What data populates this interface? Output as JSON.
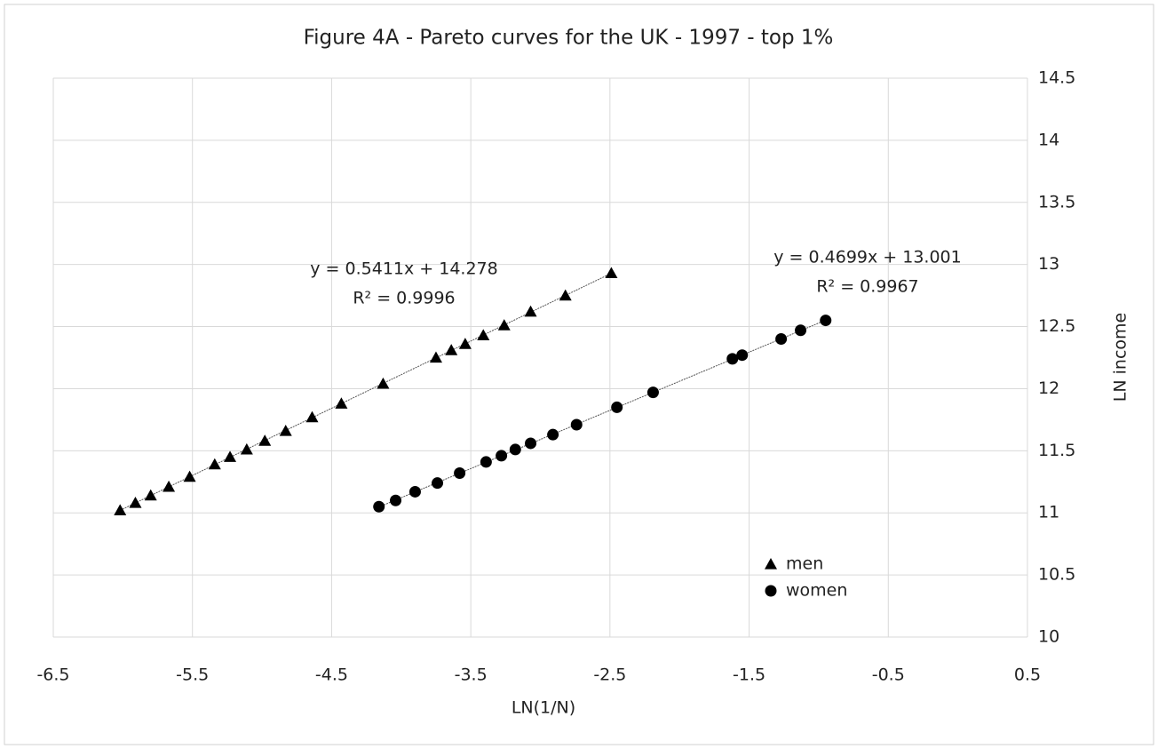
{
  "chart_data": {
    "type": "scatter",
    "title": "Figure 4A - Pareto curves for the UK - 1997 - top 1%",
    "x_label": "LN(1/N)",
    "y_label": "LN income",
    "xlim": [
      -6.5,
      0.5
    ],
    "xticks": [
      -6.5,
      -5.5,
      -4.5,
      -3.5,
      -2.5,
      -1.5,
      -0.5,
      0.5
    ],
    "ylim": [
      10,
      14.5
    ],
    "yticks": [
      10,
      10.5,
      11,
      11.5,
      12,
      12.5,
      13,
      13.5,
      14,
      14.5
    ],
    "grid": true,
    "legend": "lower right",
    "y_axis_side": "right",
    "series": [
      {
        "name": "men",
        "color": "#000000",
        "marker": "triangle",
        "x": [
          -6.02,
          -5.91,
          -5.8,
          -5.67,
          -5.52,
          -5.34,
          -5.23,
          -5.11,
          -4.98,
          -4.83,
          -4.64,
          -4.43,
          -4.13,
          -3.75,
          -3.64,
          -3.54,
          -3.41,
          -3.26,
          -3.07,
          -2.82,
          -2.49
        ],
        "values": [
          11.02,
          11.08,
          11.14,
          11.21,
          11.29,
          11.39,
          11.45,
          11.51,
          11.58,
          11.66,
          11.77,
          11.88,
          12.04,
          12.25,
          12.31,
          12.36,
          12.43,
          12.51,
          12.62,
          12.75,
          12.93
        ],
        "trendline_label": [
          "y = 0.5411x + 14.278",
          "R² = 0.9996"
        ]
      },
      {
        "name": "women",
        "color": "#000000",
        "marker": "circle",
        "x": [
          -4.16,
          -4.04,
          -3.9,
          -3.74,
          -3.58,
          -3.39,
          -3.28,
          -3.18,
          -3.07,
          -2.91,
          -2.74,
          -2.45,
          -2.19,
          -1.62,
          -1.55,
          -1.27,
          -1.13,
          -0.95
        ],
        "values": [
          11.05,
          11.1,
          11.17,
          11.24,
          11.32,
          11.41,
          11.46,
          11.51,
          11.56,
          11.63,
          11.71,
          11.85,
          11.97,
          12.24,
          12.27,
          12.4,
          12.47,
          12.55
        ],
        "trendline_label": [
          "y = 0.4699x + 13.001",
          "R² = 0.9967"
        ]
      }
    ]
  }
}
